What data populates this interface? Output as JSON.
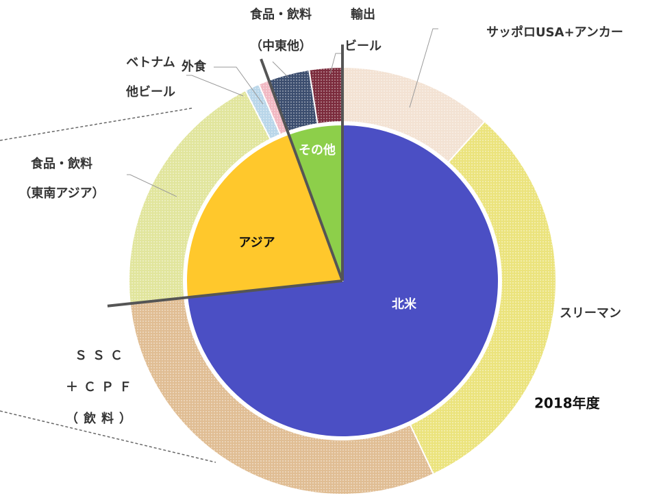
{
  "chart_data": {
    "type": "sunburst",
    "inner": {
      "categories": [
        [
          "北米"
        ],
        [
          "アジア"
        ],
        [
          "その他"
        ]
      ],
      "values": [
        73.3,
        21.1,
        5.6
      ],
      "colors": [
        "#4b4fc4",
        "#ffc82c",
        "#8dcf4a"
      ]
    },
    "outer": {
      "categories": [
        [
          "サッポロUSA+アンカー"
        ],
        [
          "スリーマン"
        ],
        [
          "ＳＳＣ",
          "＋ＣＰＦ",
          "（飲料）"
        ],
        [
          "食品・飲料",
          "（東南アジア）"
        ],
        [
          "ベトナム",
          "他ビール"
        ],
        [
          "外食"
        ],
        [
          "食品・飲料",
          "（中東他）"
        ],
        [
          "輸出",
          "ビール"
        ]
      ],
      "values": [
        11.6,
        31.4,
        30.3,
        19.2,
        1.1,
        0.8,
        3.1,
        2.5
      ],
      "colors": [
        "#f3e2d3",
        "#ebe37c",
        "#e0bd93",
        "#e1e59c",
        "#b9d6e9",
        "#f1b8c2",
        "#3b4d6e",
        "#7b2b3c"
      ]
    },
    "annotation": "2018年度"
  }
}
